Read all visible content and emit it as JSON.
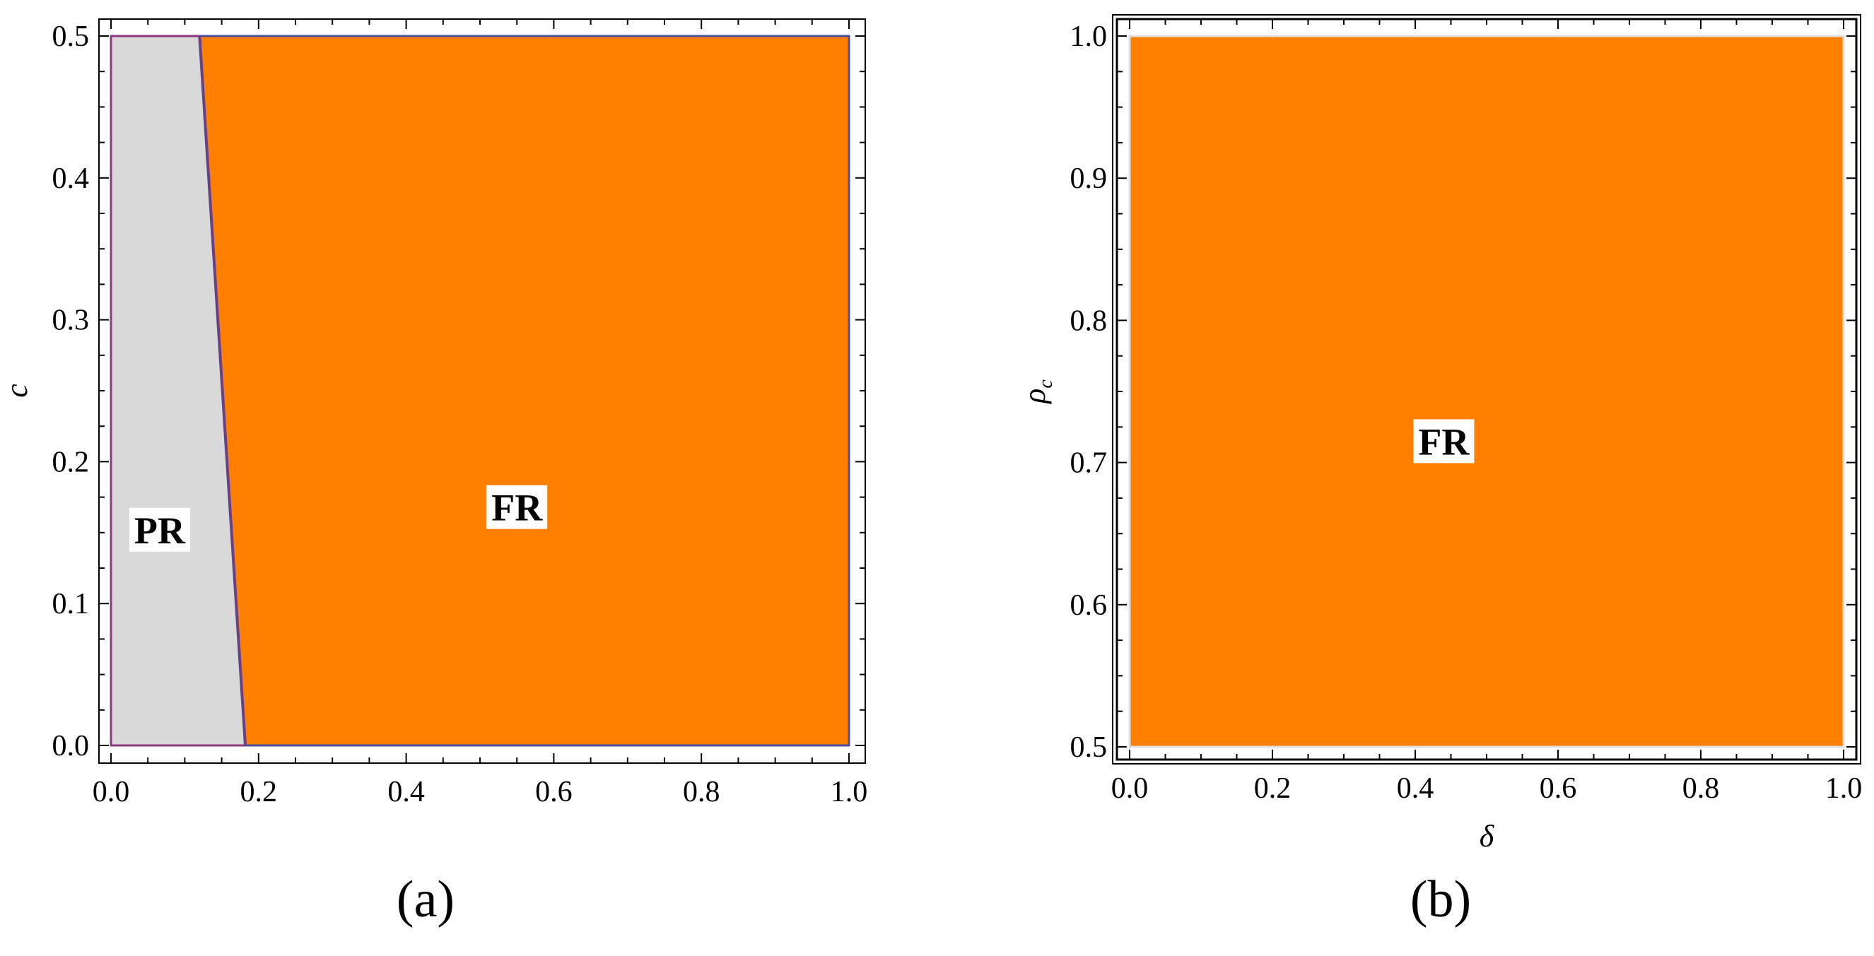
{
  "chart_data": [
    {
      "type": "area",
      "panel_label": "(a)",
      "title": "",
      "xlabel": "",
      "ylabel": "c",
      "xlim": [
        0.0,
        1.0
      ],
      "ylim": [
        0.0,
        0.5
      ],
      "xticks": [
        "0.0",
        "0.2",
        "0.4",
        "0.6",
        "0.8",
        "1.0"
      ],
      "yticks": [
        "0.0",
        "0.1",
        "0.2",
        "0.3",
        "0.4",
        "0.5"
      ],
      "grid": false,
      "regions": [
        {
          "name": "PR",
          "color": "#d9d9d9",
          "boundary": [
            {
              "x": 0.0,
              "y": 0.0
            },
            {
              "x": 0.182,
              "y": 0.0
            },
            {
              "x": 0.12,
              "y": 0.5
            },
            {
              "x": 0.0,
              "y": 0.5
            }
          ]
        },
        {
          "name": "FR",
          "color": "#ff8000",
          "boundary": [
            {
              "x": 0.182,
              "y": 0.0
            },
            {
              "x": 1.0,
              "y": 0.0
            },
            {
              "x": 1.0,
              "y": 0.5
            },
            {
              "x": 0.12,
              "y": 0.5
            }
          ]
        }
      ],
      "dividing_line": [
        {
          "x": 0.12,
          "y": 0.5
        },
        {
          "x": 0.182,
          "y": 0.0
        }
      ],
      "annotations": [
        {
          "text": "PR",
          "x": 0.066,
          "y": 0.152
        },
        {
          "text": "FR",
          "x": 0.55,
          "y": 0.168
        }
      ]
    },
    {
      "type": "area",
      "panel_label": "(b)",
      "title": "",
      "xlabel": "δ",
      "ylabel": "ρc",
      "ylabel_main": "ρ",
      "ylabel_sub": "c",
      "xlim": [
        0.0,
        1.0
      ],
      "ylim": [
        0.5,
        1.0
      ],
      "xticks": [
        "0.0",
        "0.2",
        "0.4",
        "0.6",
        "0.8",
        "1.0"
      ],
      "yticks": [
        "0.5",
        "0.6",
        "0.7",
        "0.8",
        "0.9",
        "1.0"
      ],
      "grid": false,
      "regions": [
        {
          "name": "FR",
          "color": "#ff8000",
          "boundary": [
            {
              "x": 0.0,
              "y": 0.5
            },
            {
              "x": 1.0,
              "y": 0.5
            },
            {
              "x": 1.0,
              "y": 1.0
            },
            {
              "x": 0.0,
              "y": 1.0
            }
          ]
        }
      ],
      "annotations": [
        {
          "text": "FR",
          "x": 0.44,
          "y": 0.715
        }
      ]
    }
  ]
}
